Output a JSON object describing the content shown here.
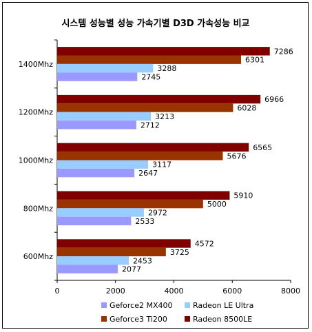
{
  "chart_data": {
    "type": "bar",
    "orientation": "horizontal",
    "title": "시스템 성능별 성능 가속기별 D3D 가속성능 비교",
    "categories": [
      "1400Mhz",
      "1200Mhz",
      "1000Mhz",
      "800Mhz",
      "600Mhz"
    ],
    "series": [
      {
        "name": "Geforce2 MX400",
        "color": "#9999ff",
        "values": [
          2745,
          2712,
          2647,
          2533,
          2077
        ]
      },
      {
        "name": "Radeon LE Ultra",
        "color": "#99ccff",
        "values": [
          3288,
          3213,
          3117,
          2972,
          2453
        ]
      },
      {
        "name": "Geforce3 Ti200",
        "color": "#993300",
        "values": [
          6301,
          6028,
          5676,
          5000,
          3725
        ]
      },
      {
        "name": "Radeon 8500LE",
        "color": "#800000",
        "values": [
          7286,
          6966,
          6565,
          5910,
          4572
        ]
      }
    ],
    "xlim": [
      0,
      8000
    ],
    "x_ticks": [
      "0",
      "2000",
      "4000",
      "6000",
      "8000"
    ],
    "grid": false,
    "legend_position": "bottom"
  }
}
